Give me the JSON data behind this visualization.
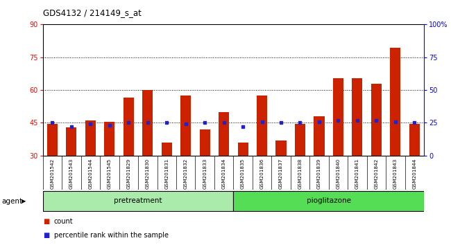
{
  "title": "GDS4132 / 214149_s_at",
  "samples": [
    "GSM201542",
    "GSM201543",
    "GSM201544",
    "GSM201545",
    "GSM201829",
    "GSM201830",
    "GSM201831",
    "GSM201832",
    "GSM201833",
    "GSM201834",
    "GSM201835",
    "GSM201836",
    "GSM201837",
    "GSM201838",
    "GSM201839",
    "GSM201840",
    "GSM201841",
    "GSM201842",
    "GSM201843",
    "GSM201844"
  ],
  "count_values": [
    44.5,
    43.0,
    46.0,
    45.5,
    56.5,
    60.0,
    36.0,
    57.5,
    42.0,
    50.0,
    36.0,
    57.5,
    37.0,
    44.5,
    48.0,
    65.5,
    65.5,
    63.0,
    79.5,
    44.5
  ],
  "percentile_values": [
    25,
    22,
    24,
    23,
    25,
    25,
    25,
    24,
    25,
    25,
    22,
    26,
    25,
    25,
    26,
    27,
    27,
    27,
    26,
    25
  ],
  "bar_color": "#cc2200",
  "pct_color": "#2222cc",
  "ylim_left": [
    30,
    90
  ],
  "ylim_right": [
    0,
    100
  ],
  "yticks_left": [
    30,
    45,
    60,
    75,
    90
  ],
  "yticks_right": [
    0,
    25,
    50,
    75,
    100
  ],
  "grid_yticks": [
    45,
    60,
    75
  ],
  "pretreatment_label": "pretreatment",
  "pioglitazone_label": "pioglitazone",
  "pretreatment_count": 10,
  "pioglitazone_count": 10,
  "agent_label": "agent",
  "legend_count": "count",
  "legend_pct": "percentile rank within the sample",
  "bar_width": 0.55,
  "background_color": "#ffffff",
  "plot_bg_color": "#ffffff",
  "xlabel_area_color": "#c8c8c8",
  "pretreatment_color": "#aaeaaa",
  "pioglitazone_color": "#55dd55"
}
